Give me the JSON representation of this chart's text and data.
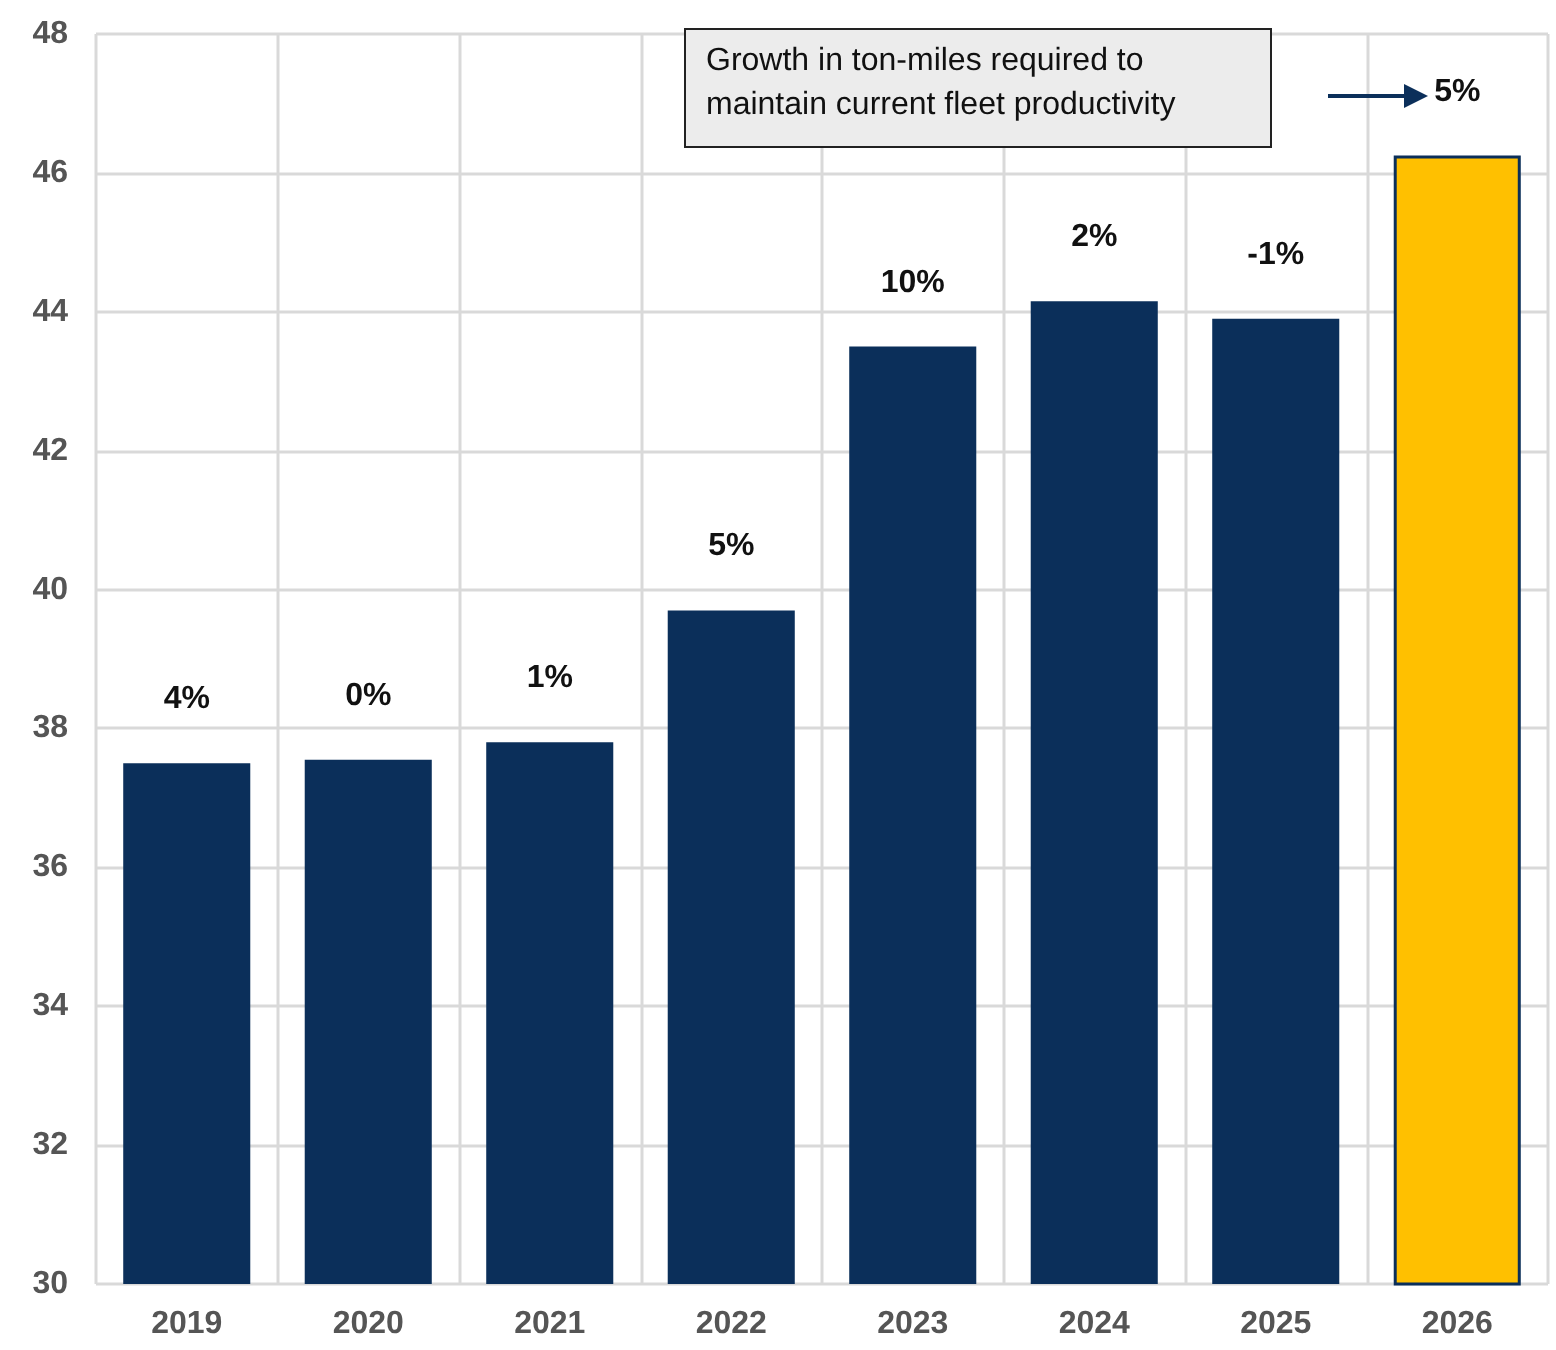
{
  "chart_data": {
    "type": "bar",
    "categories": [
      "2019",
      "2020",
      "2021",
      "2022",
      "2023",
      "2024",
      "2025",
      "2026"
    ],
    "values": [
      37.5,
      37.55,
      37.8,
      39.7,
      43.5,
      44.15,
      43.9,
      46.25
    ],
    "colors": [
      "#0b2f5a",
      "#0b2f5a",
      "#0b2f5a",
      "#0b2f5a",
      "#0b2f5a",
      "#0b2f5a",
      "#0b2f5a",
      "#ffc000"
    ],
    "ylim": [
      30,
      48
    ],
    "yticks": [
      30,
      32,
      34,
      36,
      38,
      40,
      42,
      44,
      46,
      48
    ],
    "grid": true,
    "annotations": [
      "Growth in ton-miles required to maintain current fleet productivity",
      {
        "text": "4%",
        "x": "2019",
        "y": 37.5
      },
      {
        "text": "0%",
        "x": "2020",
        "y": 37.55
      },
      {
        "text": "1%",
        "x": "2021",
        "y": 37.8
      },
      {
        "text": "5%",
        "x": "2022",
        "y": 39.7
      },
      {
        "text": "10%",
        "x": "2023",
        "y": 43.5
      },
      {
        "text": "2%",
        "x": "2024",
        "y": 44.15
      },
      {
        "text": "-1%",
        "x": "2025",
        "y": 43.9
      },
      {
        "text": "5%",
        "x": "2026",
        "y": 46.25
      }
    ]
  }
}
